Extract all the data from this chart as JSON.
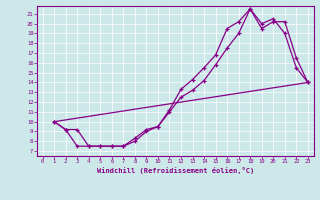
{
  "bg_color": "#cce8e8",
  "line_color": "#880088",
  "grid_color": "#ffffff",
  "xlim": [
    -0.5,
    23.5
  ],
  "ylim": [
    6.5,
    21.8
  ],
  "xticks": [
    0,
    1,
    2,
    3,
    4,
    5,
    6,
    7,
    8,
    9,
    10,
    11,
    12,
    13,
    14,
    15,
    16,
    17,
    18,
    19,
    20,
    21,
    22,
    23
  ],
  "yticks": [
    7,
    8,
    9,
    10,
    11,
    12,
    13,
    14,
    15,
    16,
    17,
    18,
    19,
    20,
    21
  ],
  "xlabel": "Windchill (Refroidissement éolien,°C)",
  "line1_x": [
    1,
    2,
    3,
    4,
    5,
    6,
    7,
    8,
    9,
    10,
    11,
    12,
    13,
    14,
    15,
    16,
    17,
    18,
    19,
    20,
    21,
    22,
    23
  ],
  "line1_y": [
    10,
    9.2,
    9.2,
    7.5,
    7.5,
    7.5,
    7.5,
    8.3,
    9.2,
    9.5,
    11.2,
    13.3,
    14.3,
    15.5,
    16.8,
    19.5,
    20.2,
    21.5,
    19.5,
    20.2,
    20.2,
    16.5,
    14.0
  ],
  "line2_x": [
    1,
    2,
    3,
    4,
    5,
    6,
    7,
    8,
    9,
    10,
    11,
    12,
    13,
    14,
    15,
    16,
    17,
    18,
    19,
    20,
    21,
    22,
    23
  ],
  "line2_y": [
    10,
    9.2,
    7.5,
    7.5,
    7.5,
    7.5,
    7.5,
    8.0,
    9.0,
    9.5,
    11.0,
    12.5,
    13.2,
    14.2,
    15.8,
    17.5,
    19.0,
    21.5,
    20.0,
    20.5,
    19.0,
    15.5,
    14.0
  ],
  "line3_x": [
    1,
    23
  ],
  "line3_y": [
    10,
    14.0
  ]
}
